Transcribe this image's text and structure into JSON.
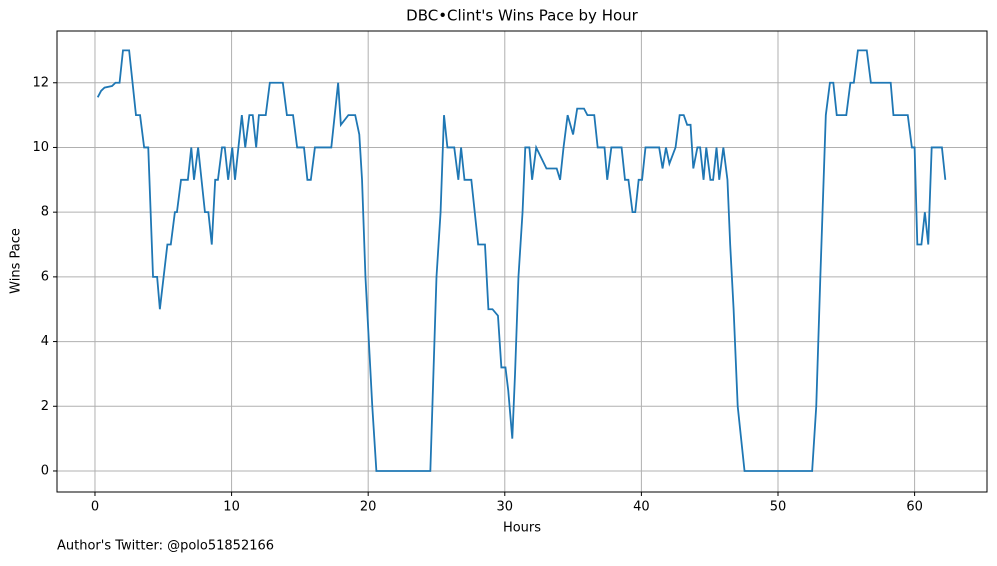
{
  "chart_data": {
    "type": "line",
    "title": "DBC•Clint's Wins Pace by Hour",
    "xlabel": "Hours",
    "ylabel": "Wins Pace",
    "footnote": "Author's Twitter: @polo51852166",
    "x": [
      0.2,
      0.45,
      0.7,
      1.25,
      1.5,
      1.8,
      2.05,
      2.5,
      3.0,
      3.3,
      3.6,
      3.9,
      4.25,
      4.55,
      4.75,
      5.3,
      5.55,
      5.85,
      6.0,
      6.3,
      6.8,
      7.05,
      7.25,
      7.55,
      8.05,
      8.3,
      8.55,
      8.8,
      9.0,
      9.3,
      9.5,
      9.75,
      10.05,
      10.25,
      10.75,
      11.0,
      11.3,
      11.55,
      11.8,
      12.0,
      12.5,
      12.8,
      13.75,
      14.05,
      14.5,
      14.8,
      15.3,
      15.55,
      15.8,
      16.1,
      17.3,
      17.8,
      18.0,
      18.55,
      19.05,
      19.35,
      19.55,
      19.8,
      20.1,
      20.3,
      20.6,
      24.55,
      25.0,
      25.3,
      25.55,
      25.8,
      26.3,
      26.6,
      26.8,
      27.05,
      27.55,
      28.05,
      28.55,
      28.8,
      29.1,
      29.5,
      29.75,
      30.05,
      30.25,
      30.55,
      30.75,
      31.0,
      31.3,
      31.5,
      31.8,
      32.0,
      32.3,
      33.05,
      33.8,
      34.05,
      34.3,
      34.6,
      35.0,
      35.3,
      35.8,
      36.05,
      36.55,
      36.8,
      37.3,
      37.5,
      37.8,
      38.55,
      38.8,
      39.05,
      39.35,
      39.55,
      39.8,
      40.05,
      40.3,
      41.3,
      41.55,
      41.8,
      42.05,
      42.5,
      42.8,
      43.1,
      43.35,
      43.6,
      43.8,
      44.1,
      44.3,
      44.55,
      44.75,
      45.05,
      45.25,
      45.5,
      45.7,
      46.0,
      46.3,
      46.5,
      46.75,
      47.05,
      47.55,
      52.5,
      52.8,
      53.1,
      53.5,
      53.8,
      54.05,
      54.3,
      55.0,
      55.3,
      55.55,
      55.85,
      56.5,
      56.8,
      58.25,
      58.45,
      59.5,
      59.8,
      60.0,
      60.2,
      60.5,
      60.75,
      61.0,
      61.25,
      62.0,
      62.25
    ],
    "series": [
      {
        "name": "Wins Pace",
        "color": "#1f77b4",
        "values": [
          11.55,
          11.75,
          11.85,
          11.9,
          12,
          12,
          13,
          13,
          11,
          11,
          10,
          10,
          6,
          6,
          5,
          7,
          7,
          8,
          8,
          9,
          9,
          10,
          9,
          10,
          8,
          8,
          7,
          9,
          9,
          10,
          10,
          9,
          10,
          9,
          11,
          10,
          11,
          11,
          10,
          11,
          11,
          12,
          12,
          11,
          11,
          10,
          10,
          9,
          9,
          10,
          10,
          12,
          10.7,
          11,
          11,
          10.4,
          9,
          6,
          3.6,
          2,
          0,
          0,
          6,
          8,
          11,
          10,
          10,
          9,
          10,
          9,
          9,
          7,
          7,
          5,
          5,
          4.8,
          3.2,
          3.2,
          2.5,
          1,
          3,
          6,
          8,
          10,
          10,
          9,
          10,
          9.35,
          9.35,
          9,
          10,
          11,
          10.4,
          11.2,
          11.2,
          11,
          11,
          10,
          10,
          9,
          10,
          10,
          9,
          9,
          8,
          8,
          9,
          9,
          10,
          10,
          9.35,
          10,
          9.5,
          10,
          11,
          11,
          10.7,
          10.7,
          9.35,
          10,
          10,
          9,
          10,
          9,
          9,
          10,
          9,
          10,
          9,
          7,
          5,
          2,
          0,
          0,
          2,
          6,
          11,
          12,
          12,
          11,
          11,
          12,
          12,
          13,
          13,
          12,
          12,
          11,
          11,
          10,
          10,
          7,
          7,
          8,
          7,
          10,
          10,
          9
        ]
      }
    ],
    "xlim": [
      -2.78,
      65.3
    ],
    "ylim": [
      -0.65,
      13.6
    ],
    "xticks": [
      0,
      10,
      20,
      30,
      40,
      50,
      60
    ],
    "yticks": [
      0,
      2,
      4,
      6,
      8,
      10,
      12
    ],
    "grid": true
  }
}
